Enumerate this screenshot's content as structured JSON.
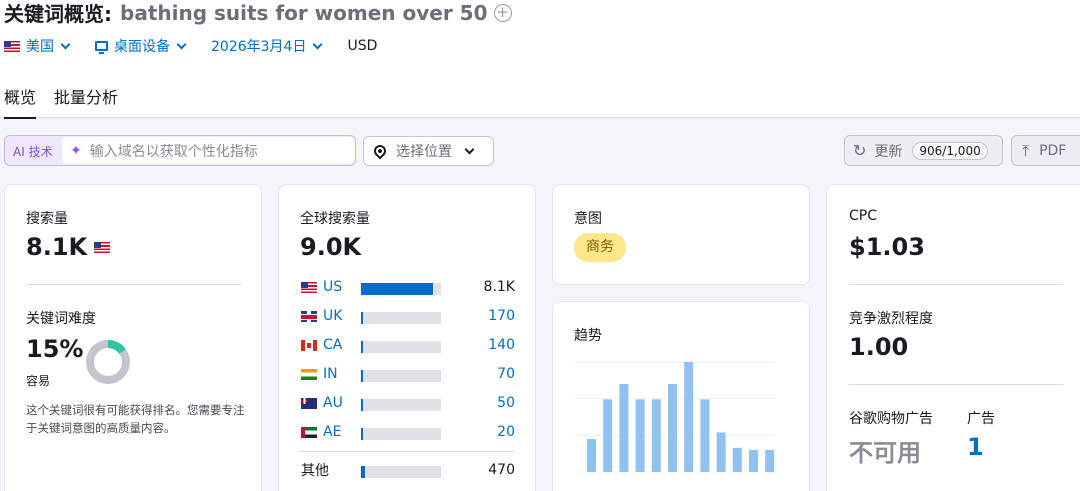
{
  "header": {
    "title_prefix": "关键词概览:",
    "keyword": "bathing suits for women over 50",
    "add_icon": "plus-circle-icon",
    "filters": {
      "country": "美国",
      "device": "桌面设备",
      "date": "2026年3月4日",
      "currency": "USD"
    },
    "tabs": [
      {
        "label": "概览",
        "active": true
      },
      {
        "label": "批量分析",
        "active": false
      }
    ]
  },
  "toolbar": {
    "ai_tag": "AI 技术",
    "ai_placeholder": "输入域名以获取个性化指标",
    "location_label": "选择位置",
    "update_label": "更新",
    "update_count": "906/1,000",
    "pdf_label": "PDF"
  },
  "volume_card": {
    "label": "搜索量",
    "value": "8.1K",
    "kd_label": "关键词难度",
    "kd_value": "15%",
    "kd_fraction": 0.15,
    "kd_level": "容易",
    "kd_description": "这个关键词很有可能获得排名。您需要专注于关键词意图的高质量内容。",
    "kd_color": "#2ec5a0"
  },
  "global_card": {
    "label": "全球搜索量",
    "value": "9.0K",
    "countries": [
      {
        "code": "US",
        "flag": "us",
        "value": "8.1K",
        "fraction": 0.9
      },
      {
        "code": "UK",
        "flag": "uk",
        "value": "170",
        "fraction": 0.02
      },
      {
        "code": "CA",
        "flag": "ca",
        "value": "140",
        "fraction": 0.016
      },
      {
        "code": "IN",
        "flag": "in",
        "value": "70",
        "fraction": 0.008
      },
      {
        "code": "AU",
        "flag": "au",
        "value": "50",
        "fraction": 0.006
      },
      {
        "code": "AE",
        "flag": "ae",
        "value": "20",
        "fraction": 0.002
      }
    ],
    "other": {
      "label": "其他",
      "value": "470",
      "fraction": 0.05
    }
  },
  "intent_card": {
    "label": "意图",
    "badge": "商务",
    "badge_color": "#fde78a"
  },
  "trend_card": {
    "label": "趋势",
    "bar_color": "#8fc2ee",
    "values": [
      0.3,
      0.66,
      0.8,
      0.66,
      0.66,
      0.8,
      1.0,
      0.66,
      0.36,
      0.22,
      0.2,
      0.2
    ]
  },
  "cpc_card": {
    "label": "CPC",
    "value": "$1.03",
    "competition_label": "竞争激烈程度",
    "competition_value": "1.00",
    "shopping_label": "谷歌购物广告",
    "shopping_value": "不可用",
    "ads_label": "广告",
    "ads_value": "1"
  }
}
